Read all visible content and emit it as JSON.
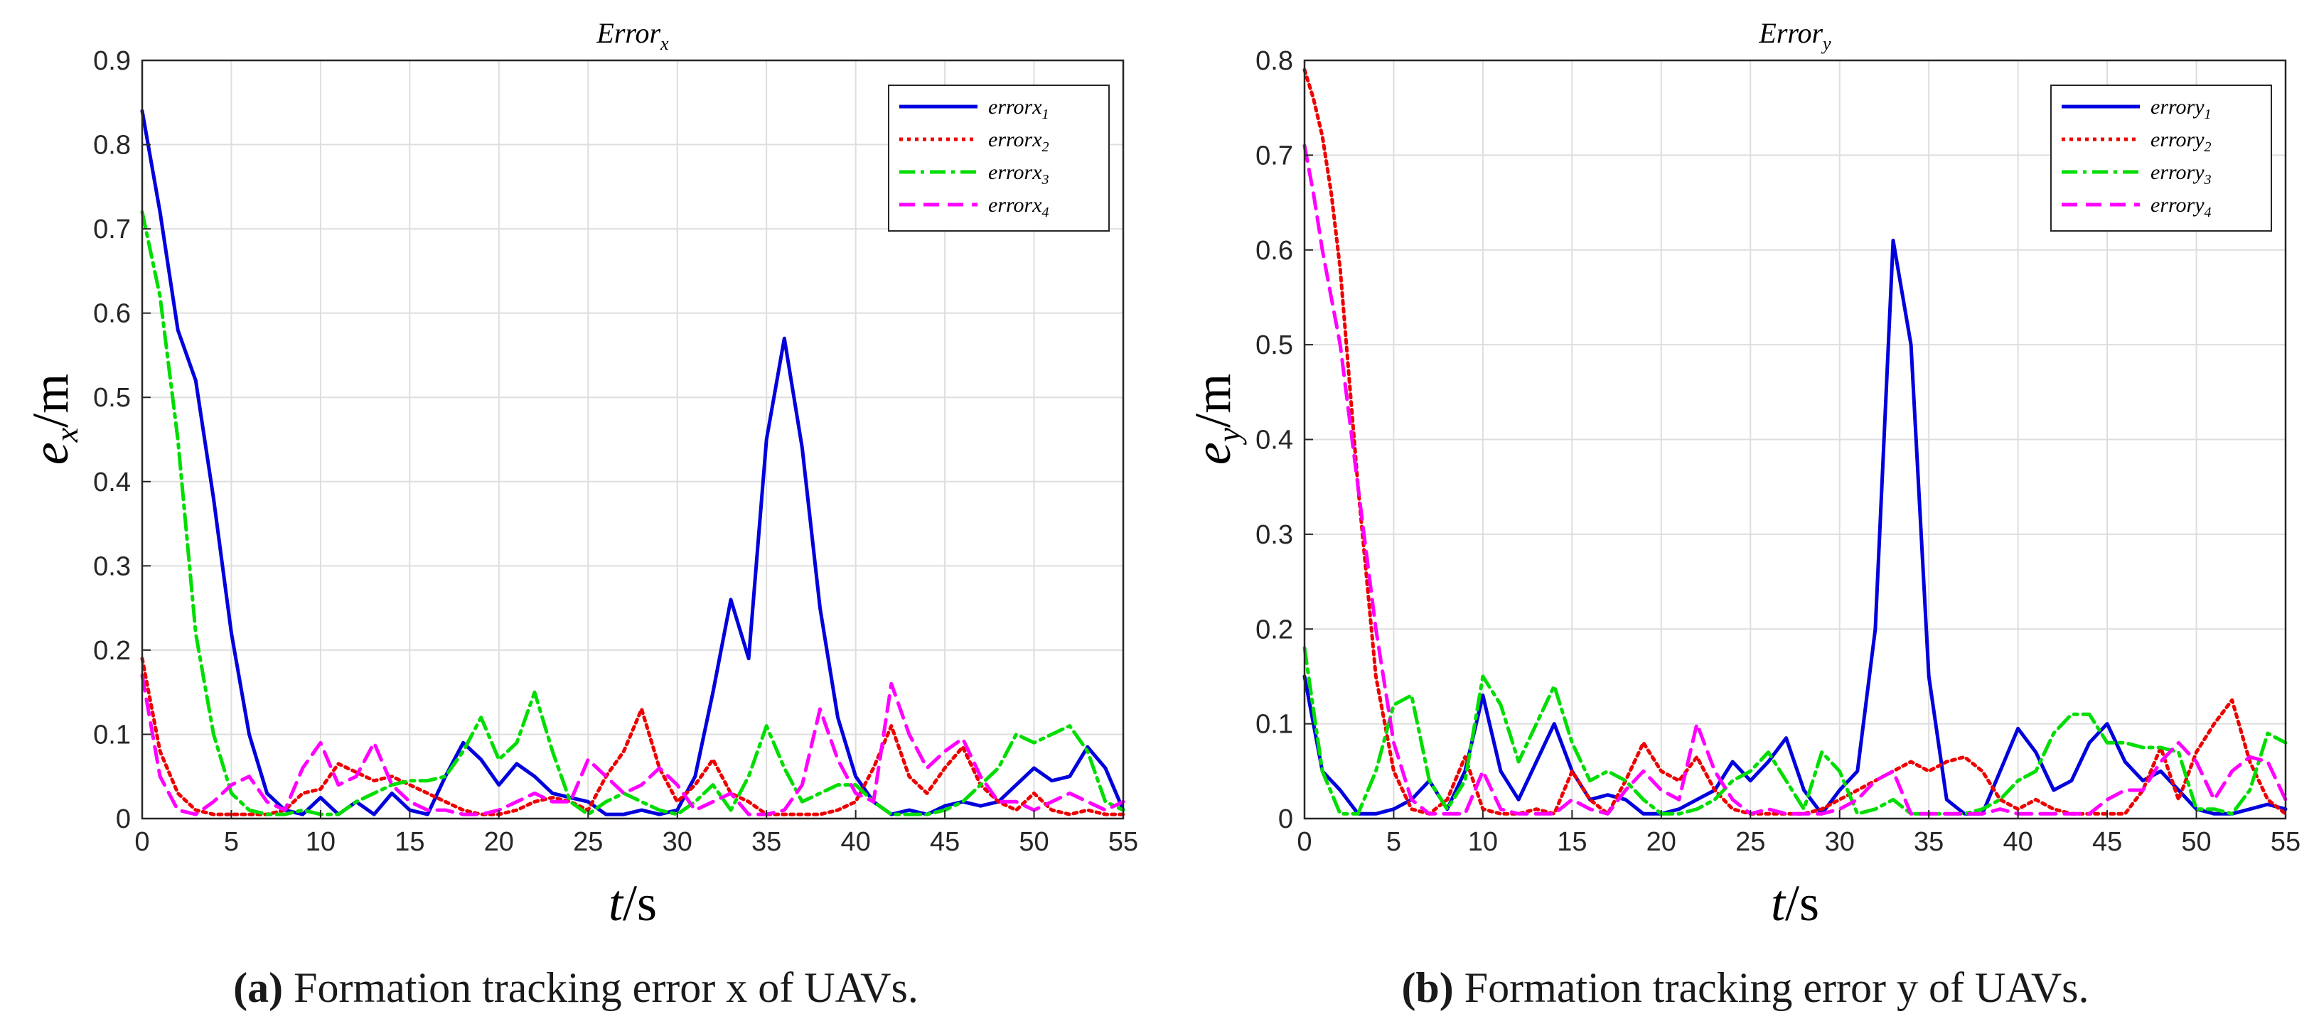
{
  "chart_data": [
    {
      "type": "line",
      "title": "Error",
      "title_sub": "x",
      "xlabel_var": "t",
      "xlabel_unit": "/s",
      "ylabel_var": "e",
      "ylabel_sub": "x",
      "ylabel_unit": "/m",
      "xlim": [
        0,
        55
      ],
      "ylim": [
        0,
        0.9
      ],
      "xticks": [
        "0",
        "5",
        "10",
        "15",
        "20",
        "25",
        "30",
        "35",
        "40",
        "45",
        "50",
        "55"
      ],
      "yticks": [
        "0",
        "0.1",
        "0.2",
        "0.3",
        "0.4",
        "0.5",
        "0.6",
        "0.7",
        "0.8",
        "0.9"
      ],
      "grid": true,
      "legend_position": "top-right",
      "caption_label": "(a)",
      "caption_text": "Formation tracking error x of UAVs.",
      "series": [
        {
          "name": "errorx",
          "sub": "1",
          "color": "#0000dd",
          "dash": "solid",
          "x": [
            0,
            1,
            2,
            3,
            4,
            5,
            6,
            7,
            8,
            9,
            10,
            11,
            12,
            13,
            14,
            15,
            16,
            17,
            18,
            19,
            20,
            21,
            22,
            23,
            24,
            25,
            26,
            27,
            28,
            29,
            30,
            31,
            32,
            33,
            34,
            35,
            36,
            37,
            38,
            39,
            40,
            41,
            42,
            43,
            44,
            45,
            46,
            47,
            48,
            49,
            50,
            51,
            52,
            53,
            54,
            55
          ],
          "y": [
            0.84,
            0.72,
            0.58,
            0.52,
            0.38,
            0.22,
            0.1,
            0.03,
            0.01,
            0.005,
            0.025,
            0.005,
            0.02,
            0.005,
            0.03,
            0.01,
            0.005,
            0.05,
            0.09,
            0.07,
            0.04,
            0.065,
            0.05,
            0.03,
            0.025,
            0.02,
            0.005,
            0.005,
            0.01,
            0.005,
            0.01,
            0.05,
            0.15,
            0.26,
            0.19,
            0.45,
            0.57,
            0.44,
            0.25,
            0.12,
            0.05,
            0.02,
            0.005,
            0.01,
            0.005,
            0.015,
            0.02,
            0.015,
            0.02,
            0.04,
            0.06,
            0.045,
            0.05,
            0.085,
            0.06,
            0.01
          ]
        },
        {
          "name": "errorx",
          "sub": "2",
          "color": "#ee0000",
          "dash": "dotted",
          "x": [
            0,
            1,
            2,
            3,
            4,
            5,
            6,
            7,
            8,
            9,
            10,
            11,
            12,
            13,
            14,
            15,
            16,
            17,
            18,
            19,
            20,
            21,
            22,
            23,
            24,
            25,
            26,
            27,
            28,
            29,
            30,
            31,
            32,
            33,
            34,
            35,
            36,
            37,
            38,
            39,
            40,
            41,
            42,
            43,
            44,
            45,
            46,
            47,
            48,
            49,
            50,
            51,
            52,
            53,
            54,
            55
          ],
          "y": [
            0.19,
            0.08,
            0.03,
            0.01,
            0.005,
            0.005,
            0.005,
            0.005,
            0.01,
            0.03,
            0.035,
            0.065,
            0.055,
            0.045,
            0.05,
            0.04,
            0.03,
            0.02,
            0.01,
            0.005,
            0.005,
            0.01,
            0.02,
            0.025,
            0.02,
            0.01,
            0.05,
            0.08,
            0.13,
            0.06,
            0.02,
            0.04,
            0.07,
            0.03,
            0.02,
            0.005,
            0.005,
            0.005,
            0.005,
            0.01,
            0.02,
            0.06,
            0.11,
            0.05,
            0.03,
            0.06,
            0.085,
            0.04,
            0.02,
            0.01,
            0.03,
            0.01,
            0.005,
            0.01,
            0.005,
            0.005
          ]
        },
        {
          "name": "errorx",
          "sub": "3",
          "color": "#00dd00",
          "dash": "dashdot",
          "x": [
            0,
            1,
            2,
            3,
            4,
            5,
            6,
            7,
            8,
            9,
            10,
            11,
            12,
            13,
            14,
            15,
            16,
            17,
            18,
            19,
            20,
            21,
            22,
            23,
            24,
            25,
            26,
            27,
            28,
            29,
            30,
            31,
            32,
            33,
            34,
            35,
            36,
            37,
            38,
            39,
            40,
            41,
            42,
            43,
            44,
            45,
            46,
            47,
            48,
            49,
            50,
            51,
            52,
            53,
            54,
            55
          ],
          "y": [
            0.72,
            0.62,
            0.45,
            0.22,
            0.1,
            0.03,
            0.01,
            0.005,
            0.005,
            0.01,
            0.005,
            0.005,
            0.02,
            0.03,
            0.04,
            0.045,
            0.045,
            0.05,
            0.08,
            0.12,
            0.07,
            0.09,
            0.15,
            0.08,
            0.02,
            0.005,
            0.02,
            0.03,
            0.02,
            0.01,
            0.005,
            0.02,
            0.04,
            0.01,
            0.05,
            0.11,
            0.06,
            0.02,
            0.03,
            0.04,
            0.04,
            0.02,
            0.005,
            0.005,
            0.005,
            0.01,
            0.02,
            0.04,
            0.06,
            0.1,
            0.09,
            0.1,
            0.11,
            0.08,
            0.02,
            0.01
          ]
        },
        {
          "name": "errorx",
          "sub": "4",
          "color": "#ff00ff",
          "dash": "dashed",
          "x": [
            0,
            1,
            2,
            3,
            4,
            5,
            6,
            7,
            8,
            9,
            10,
            11,
            12,
            13,
            14,
            15,
            16,
            17,
            18,
            19,
            20,
            21,
            22,
            23,
            24,
            25,
            26,
            27,
            28,
            29,
            30,
            31,
            32,
            33,
            34,
            35,
            36,
            37,
            38,
            39,
            40,
            41,
            42,
            43,
            44,
            45,
            46,
            47,
            48,
            49,
            50,
            51,
            52,
            53,
            54,
            55
          ],
          "y": [
            0.17,
            0.05,
            0.01,
            0.005,
            0.02,
            0.04,
            0.05,
            0.02,
            0.01,
            0.06,
            0.09,
            0.04,
            0.05,
            0.09,
            0.04,
            0.02,
            0.01,
            0.01,
            0.005,
            0.005,
            0.01,
            0.02,
            0.03,
            0.02,
            0.02,
            0.07,
            0.05,
            0.03,
            0.04,
            0.06,
            0.04,
            0.01,
            0.02,
            0.03,
            0.005,
            0.005,
            0.01,
            0.04,
            0.13,
            0.07,
            0.03,
            0.02,
            0.16,
            0.1,
            0.06,
            0.08,
            0.095,
            0.05,
            0.02,
            0.02,
            0.01,
            0.02,
            0.03,
            0.02,
            0.01,
            0.02
          ]
        }
      ]
    },
    {
      "type": "line",
      "title": "Error",
      "title_sub": "y",
      "xlabel_var": "t",
      "xlabel_unit": "/s",
      "ylabel_var": "e",
      "ylabel_sub": "y",
      "ylabel_unit": "/m",
      "xlim": [
        0,
        55
      ],
      "ylim": [
        0,
        0.8
      ],
      "xticks": [
        "0",
        "5",
        "10",
        "15",
        "20",
        "25",
        "30",
        "35",
        "40",
        "45",
        "50",
        "55"
      ],
      "yticks": [
        "0",
        "0.1",
        "0.2",
        "0.3",
        "0.4",
        "0.5",
        "0.6",
        "0.7",
        "0.8"
      ],
      "grid": true,
      "legend_position": "top-right",
      "caption_label": "(b)",
      "caption_text": "Formation tracking error y of UAVs.",
      "series": [
        {
          "name": "errory",
          "sub": "1",
          "color": "#0000dd",
          "dash": "solid",
          "x": [
            0,
            1,
            2,
            3,
            4,
            5,
            6,
            7,
            8,
            9,
            10,
            11,
            12,
            13,
            14,
            15,
            16,
            17,
            18,
            19,
            20,
            21,
            22,
            23,
            24,
            25,
            26,
            27,
            28,
            29,
            30,
            31,
            32,
            33,
            34,
            35,
            36,
            37,
            38,
            39,
            40,
            41,
            42,
            43,
            44,
            45,
            46,
            47,
            48,
            49,
            50,
            51,
            52,
            53,
            54,
            55
          ],
          "y": [
            0.15,
            0.05,
            0.03,
            0.005,
            0.005,
            0.01,
            0.02,
            0.04,
            0.01,
            0.05,
            0.13,
            0.05,
            0.02,
            0.06,
            0.1,
            0.05,
            0.02,
            0.025,
            0.02,
            0.005,
            0.005,
            0.01,
            0.02,
            0.03,
            0.06,
            0.04,
            0.06,
            0.085,
            0.03,
            0.005,
            0.03,
            0.05,
            0.2,
            0.61,
            0.5,
            0.15,
            0.02,
            0.005,
            0.005,
            0.05,
            0.095,
            0.07,
            0.03,
            0.04,
            0.08,
            0.1,
            0.06,
            0.04,
            0.05,
            0.03,
            0.01,
            0.005,
            0.005,
            0.01,
            0.015,
            0.01
          ]
        },
        {
          "name": "errory",
          "sub": "2",
          "color": "#ee0000",
          "dash": "dotted",
          "x": [
            0,
            0.5,
            1,
            1.5,
            2,
            3,
            4,
            5,
            6,
            7,
            8,
            9,
            10,
            11,
            12,
            13,
            14,
            15,
            16,
            17,
            18,
            19,
            20,
            21,
            22,
            23,
            24,
            25,
            26,
            27,
            28,
            29,
            30,
            31,
            32,
            33,
            34,
            35,
            36,
            37,
            38,
            39,
            40,
            41,
            42,
            43,
            44,
            45,
            46,
            47,
            48,
            49,
            50,
            51,
            52,
            53,
            54,
            55
          ],
          "y": [
            0.79,
            0.76,
            0.72,
            0.66,
            0.58,
            0.35,
            0.15,
            0.05,
            0.01,
            0.005,
            0.02,
            0.065,
            0.01,
            0.005,
            0.005,
            0.01,
            0.005,
            0.05,
            0.02,
            0.005,
            0.04,
            0.08,
            0.05,
            0.04,
            0.065,
            0.03,
            0.01,
            0.005,
            0.005,
            0.005,
            0.005,
            0.01,
            0.02,
            0.03,
            0.04,
            0.05,
            0.06,
            0.05,
            0.06,
            0.065,
            0.05,
            0.02,
            0.01,
            0.02,
            0.01,
            0.005,
            0.005,
            0.005,
            0.005,
            0.03,
            0.075,
            0.02,
            0.07,
            0.1,
            0.125,
            0.06,
            0.02,
            0.005
          ]
        },
        {
          "name": "errory",
          "sub": "3",
          "color": "#00dd00",
          "dash": "dashdot",
          "x": [
            0,
            1,
            2,
            3,
            4,
            5,
            6,
            7,
            8,
            9,
            10,
            11,
            12,
            13,
            14,
            15,
            16,
            17,
            18,
            19,
            20,
            21,
            22,
            23,
            24,
            25,
            26,
            27,
            28,
            29,
            30,
            31,
            32,
            33,
            34,
            35,
            36,
            37,
            38,
            39,
            40,
            41,
            42,
            43,
            44,
            45,
            46,
            47,
            48,
            49,
            50,
            51,
            52,
            53,
            54,
            55
          ],
          "y": [
            0.18,
            0.05,
            0.005,
            0.005,
            0.05,
            0.12,
            0.13,
            0.04,
            0.01,
            0.04,
            0.15,
            0.12,
            0.06,
            0.1,
            0.14,
            0.08,
            0.04,
            0.05,
            0.04,
            0.02,
            0.005,
            0.005,
            0.01,
            0.02,
            0.04,
            0.05,
            0.07,
            0.04,
            0.01,
            0.07,
            0.05,
            0.005,
            0.01,
            0.02,
            0.005,
            0.005,
            0.005,
            0.005,
            0.01,
            0.02,
            0.04,
            0.05,
            0.09,
            0.11,
            0.11,
            0.08,
            0.08,
            0.075,
            0.075,
            0.07,
            0.01,
            0.01,
            0.005,
            0.03,
            0.09,
            0.08
          ]
        },
        {
          "name": "errory",
          "sub": "4",
          "color": "#ff00ff",
          "dash": "dashed",
          "x": [
            0,
            0.5,
            1,
            1.5,
            2,
            3,
            4,
            5,
            6,
            7,
            8,
            9,
            10,
            11,
            12,
            13,
            14,
            15,
            16,
            17,
            18,
            19,
            20,
            21,
            22,
            23,
            24,
            25,
            26,
            27,
            28,
            29,
            30,
            31,
            32,
            33,
            34,
            35,
            36,
            37,
            38,
            39,
            40,
            41,
            42,
            43,
            44,
            45,
            46,
            47,
            48,
            49,
            50,
            51,
            52,
            53,
            54,
            55
          ],
          "y": [
            0.71,
            0.66,
            0.6,
            0.55,
            0.5,
            0.35,
            0.2,
            0.08,
            0.02,
            0.005,
            0.005,
            0.005,
            0.05,
            0.01,
            0.005,
            0.005,
            0.005,
            0.02,
            0.01,
            0.005,
            0.03,
            0.05,
            0.03,
            0.02,
            0.1,
            0.05,
            0.02,
            0.005,
            0.01,
            0.005,
            0.005,
            0.005,
            0.01,
            0.02,
            0.04,
            0.05,
            0.005,
            0.005,
            0.005,
            0.005,
            0.005,
            0.01,
            0.005,
            0.005,
            0.005,
            0.005,
            0.005,
            0.02,
            0.03,
            0.03,
            0.06,
            0.08,
            0.06,
            0.02,
            0.05,
            0.065,
            0.06,
            0.02
          ]
        }
      ]
    }
  ]
}
